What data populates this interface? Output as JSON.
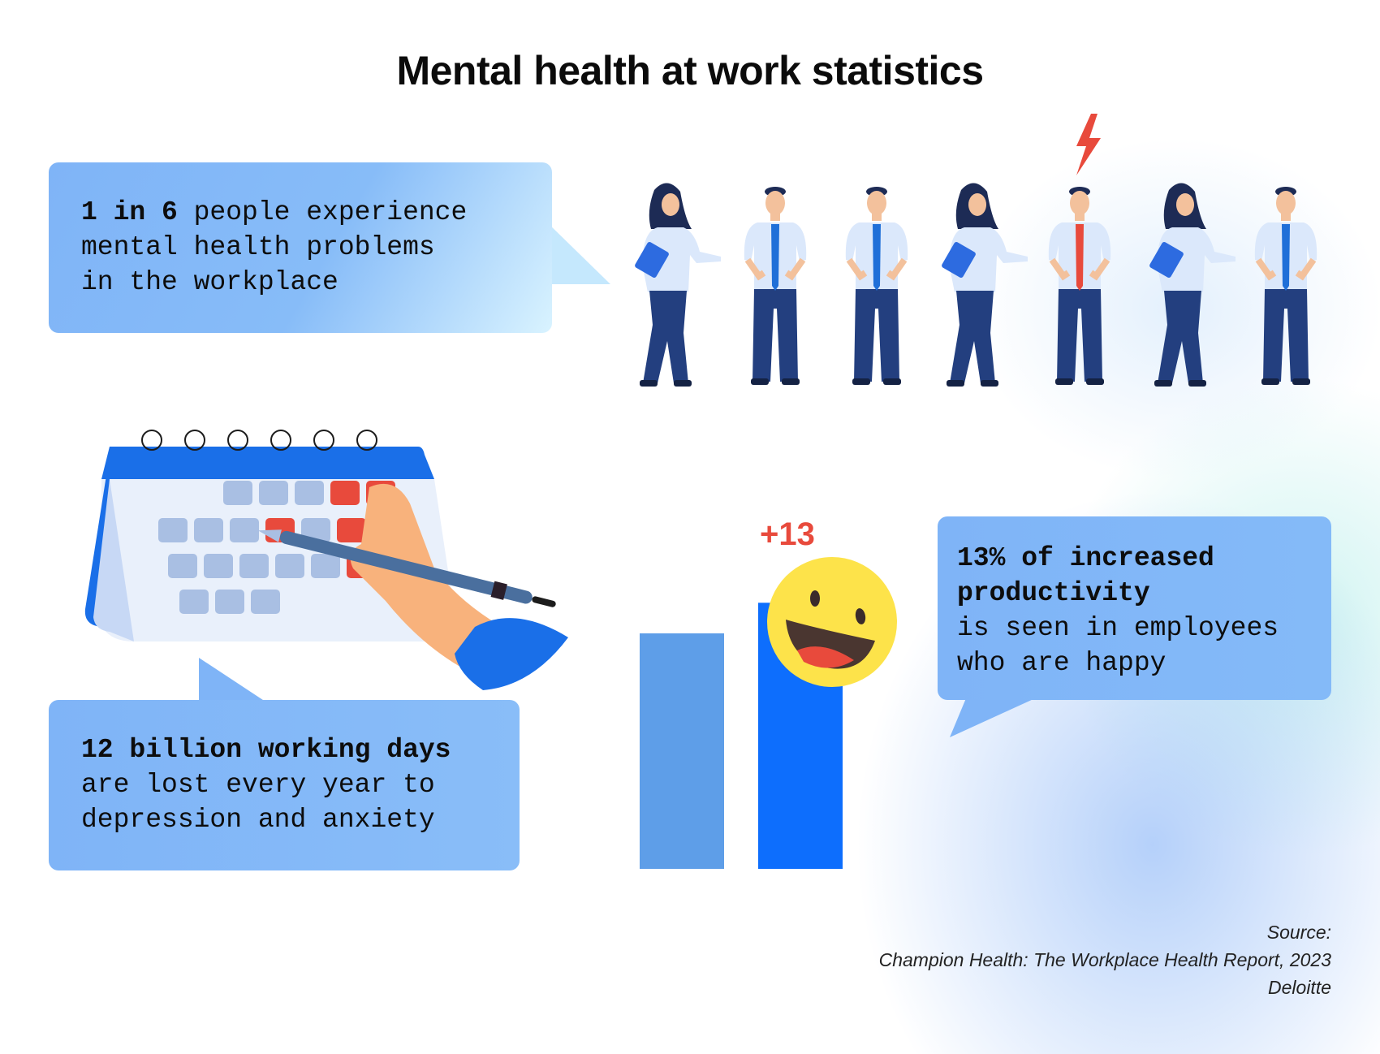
{
  "title": "Mental health at work statistics",
  "stat1": {
    "bold": "1 in 6",
    "line1_rest": " people experience",
    "line2": "mental health problems",
    "line3": "in the workplace"
  },
  "stat2": {
    "line1_bold": "12 billion working days",
    "line2": "are lost every year to",
    "line3": "depression and anxiety"
  },
  "stat3": {
    "line1_bold": "13% of increased",
    "line2_bold": "productivity",
    "line3": "is seen in employees",
    "line4": "who are happy"
  },
  "chart_data": {
    "type": "bar",
    "categories": [
      "",
      ""
    ],
    "values": [
      100,
      113
    ],
    "annotation": "+13",
    "colors": [
      "#5e9ee8",
      "#0d6efd"
    ]
  },
  "source": {
    "label": "Source:",
    "line1": "Champion Health: The Workplace Health Report, 2023",
    "line2": "Deloitte"
  },
  "colors": {
    "card": "#7fb4f7",
    "accent_red": "#e84a3c",
    "navy": "#233f7f",
    "shirt": "#dbe8fb",
    "tie": "#1f6fd8"
  }
}
